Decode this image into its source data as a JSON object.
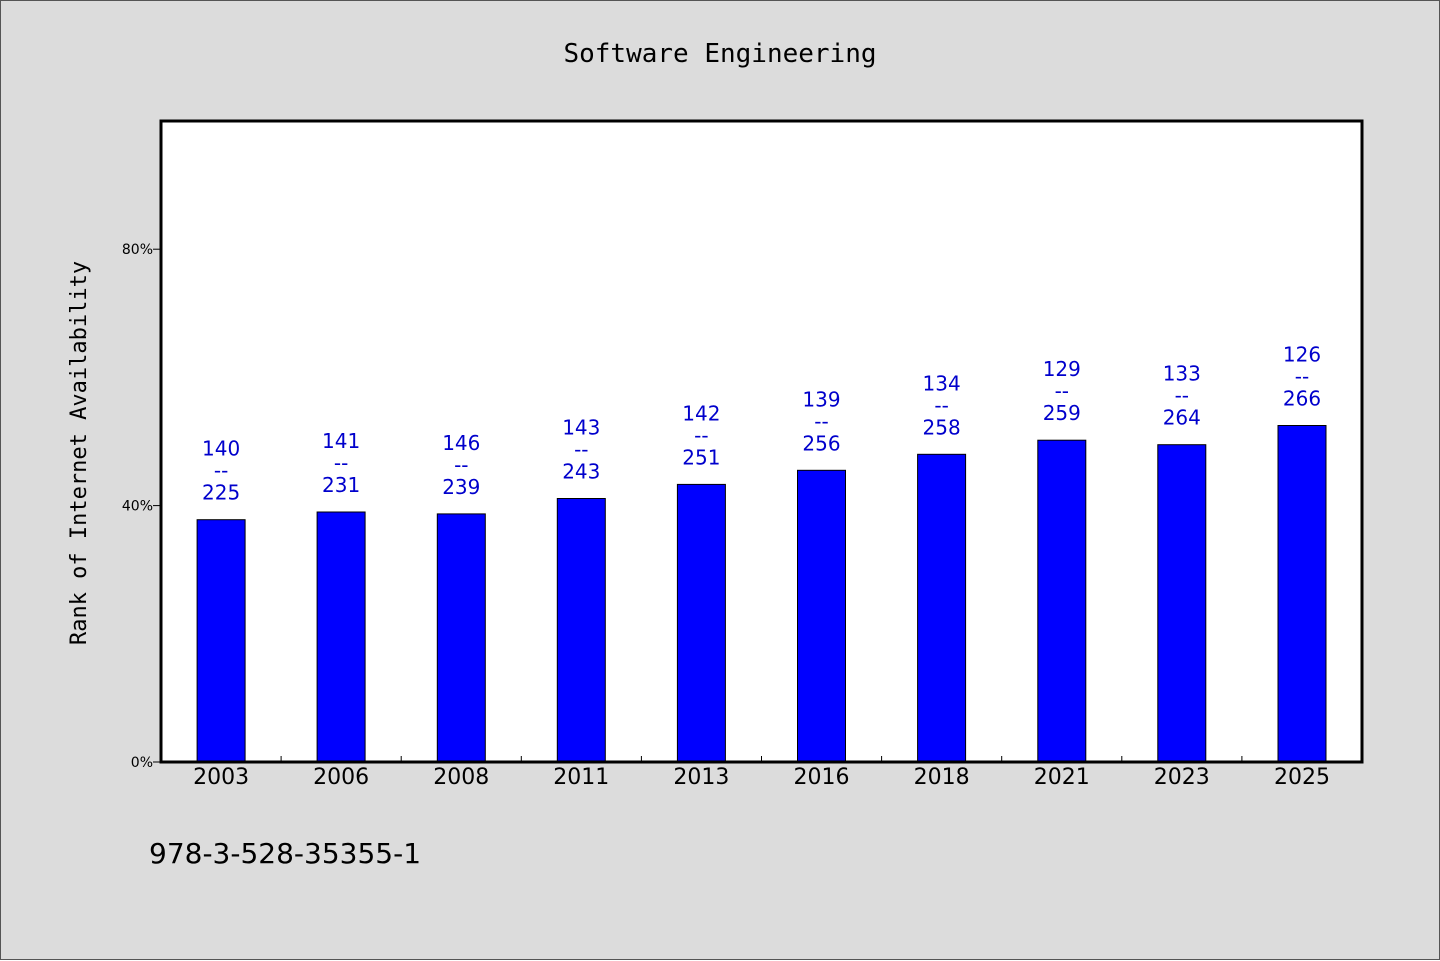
{
  "chart_data": {
    "type": "bar",
    "title": "Software Engineering",
    "xlabel": "",
    "ylabel": "Rank of Internet Availability",
    "categories": [
      "2003",
      "2006",
      "2008",
      "2011",
      "2013",
      "2016",
      "2018",
      "2021",
      "2023",
      "2025"
    ],
    "values": [
      37.8,
      39.0,
      38.7,
      41.1,
      43.3,
      45.5,
      48.0,
      50.2,
      49.5,
      52.5
    ],
    "data_labels": [
      [
        "140",
        "--",
        "225"
      ],
      [
        "141",
        "--",
        "231"
      ],
      [
        "146",
        "--",
        "239"
      ],
      [
        "143",
        "--",
        "243"
      ],
      [
        "142",
        "--",
        "251"
      ],
      [
        "139",
        "--",
        "256"
      ],
      [
        "134",
        "--",
        "258"
      ],
      [
        "129",
        "--",
        "259"
      ],
      [
        "133",
        "--",
        "264"
      ],
      [
        "126",
        "--",
        "266"
      ]
    ],
    "ylim": [
      0,
      100
    ],
    "yticks": [
      0,
      40,
      80
    ],
    "ytick_labels": [
      "0%",
      "40%",
      "80%"
    ],
    "grid": false,
    "colors": {
      "bar": "#0000ff",
      "data_label": "#0000cc",
      "background": "#dcdcdc",
      "plot_area": "#ffffff"
    }
  },
  "footer": {
    "isbn": "978-3-528-35355-1"
  }
}
